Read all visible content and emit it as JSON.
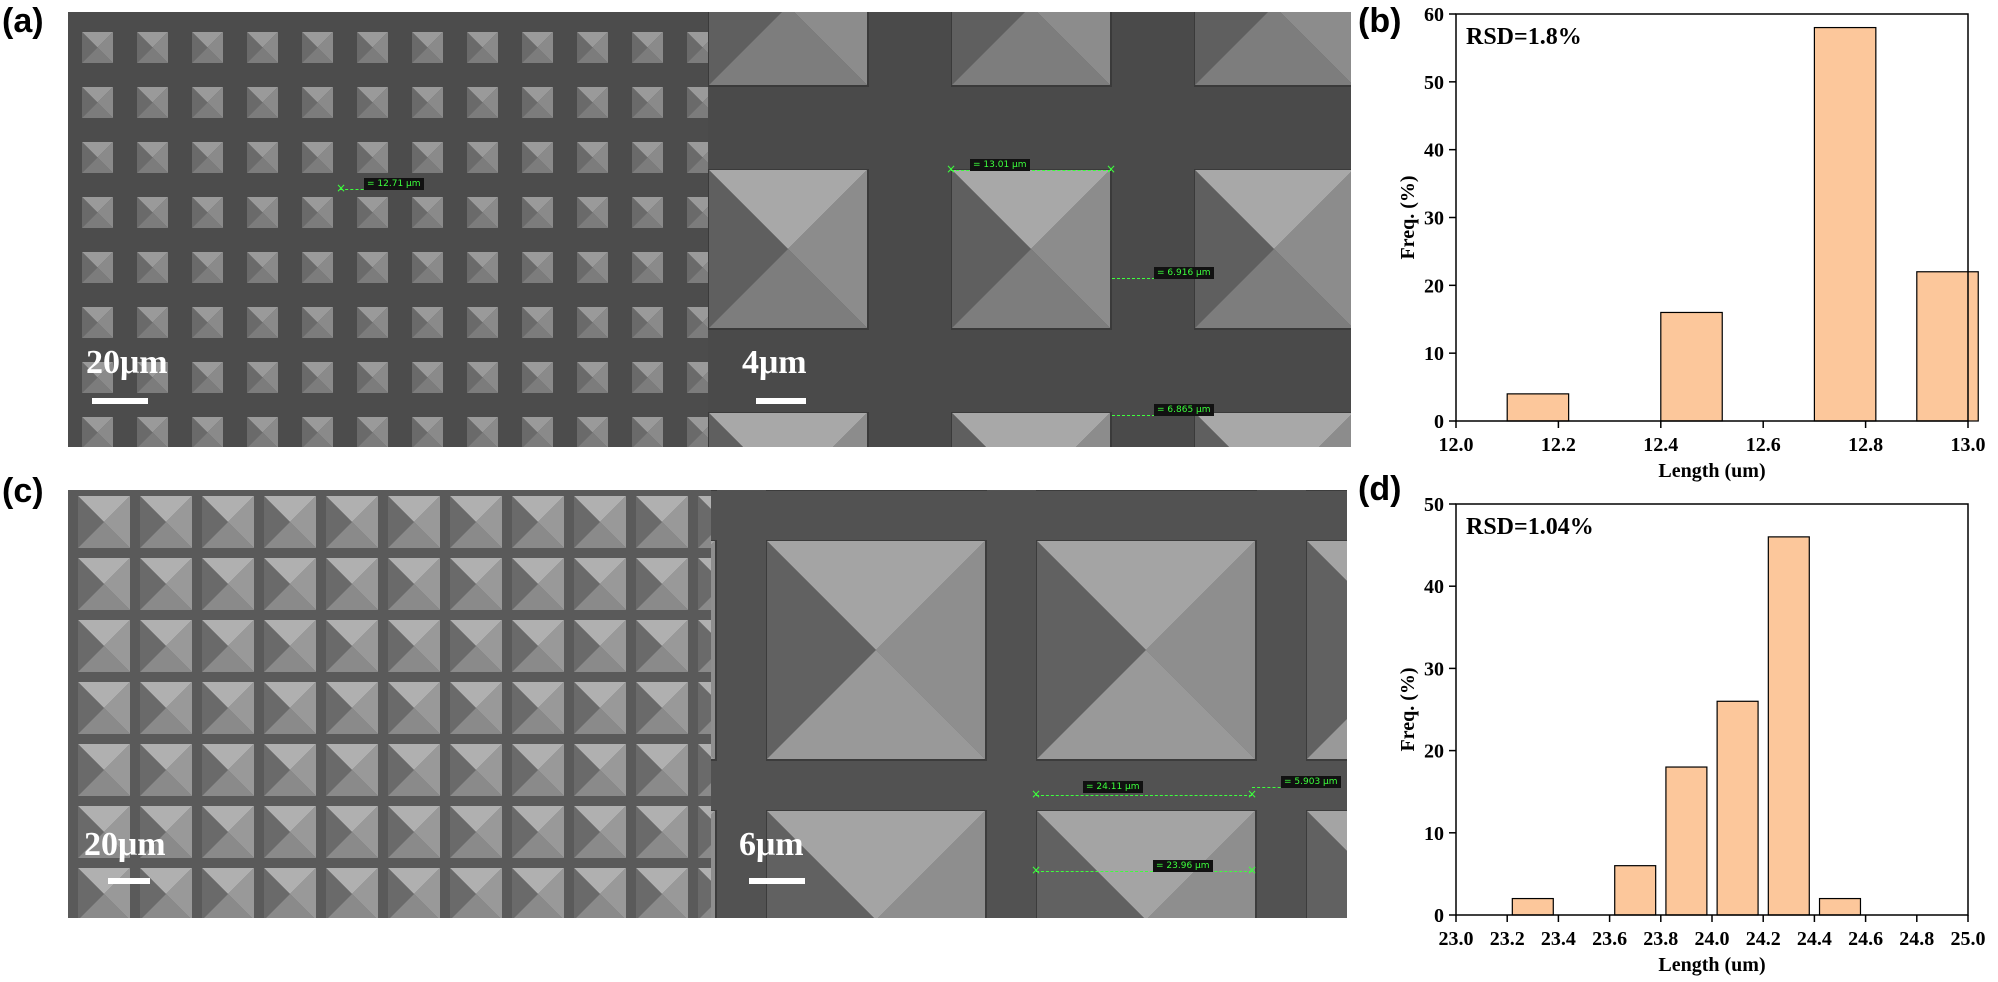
{
  "panels": {
    "a": "(a)",
    "b": "(b)",
    "c": "(c)",
    "d": "(d)"
  },
  "sem_a": {
    "left_scale": "20μm",
    "right_scale": "4μm",
    "measurements": [
      "= 12.71 μm",
      "= 13.01 μm",
      "= 6.916 μm",
      "= 6.865 μm"
    ]
  },
  "sem_c": {
    "left_scale": "20μm",
    "right_scale": "6μm",
    "measurements": [
      "= 24.11 μm",
      "= 5.903 μm",
      "= 23.96 μm"
    ]
  },
  "colors": {
    "bar_fill": "#fcc79b",
    "bar_stroke": "#000000",
    "measure_green": "#3dff3d"
  },
  "chart_data": [
    {
      "panel": "b",
      "type": "bar",
      "annotation": "RSD=1.8%",
      "xlabel": "Length (um)",
      "ylabel": "Freq. (%)",
      "xlim": [
        12.0,
        13.0
      ],
      "ylim": [
        0,
        60
      ],
      "xticks": [
        12.0,
        12.2,
        12.4,
        12.6,
        12.8,
        13.0
      ],
      "xtick_labels": [
        "12.0",
        "12.2",
        "12.4",
        "12.6",
        "12.8",
        "13.0"
      ],
      "yticks": [
        0,
        10,
        20,
        30,
        40,
        50,
        60
      ],
      "ytick_labels": [
        "0",
        "10",
        "20",
        "30",
        "40",
        "50",
        "60"
      ],
      "bar_width": 0.12,
      "x": [
        12.16,
        12.46,
        12.76,
        12.96
      ],
      "values": [
        4,
        16,
        58,
        22
      ]
    },
    {
      "panel": "d",
      "type": "bar",
      "annotation": "RSD=1.04%",
      "xlabel": "Length (um)",
      "ylabel": "Freq. (%)",
      "xlim": [
        23.0,
        25.0
      ],
      "ylim": [
        0,
        50
      ],
      "xticks": [
        23.0,
        23.2,
        23.4,
        23.6,
        23.8,
        24.0,
        24.2,
        24.4,
        24.6,
        24.8,
        25.0
      ],
      "xtick_labels": [
        "23.0",
        "23.2",
        "23.4",
        "23.6",
        "23.8",
        "24.0",
        "24.2",
        "24.4",
        "24.6",
        "24.8",
        "25.0"
      ],
      "yticks": [
        0,
        10,
        20,
        30,
        40,
        50
      ],
      "ytick_labels": [
        "0",
        "10",
        "20",
        "30",
        "40",
        "50"
      ],
      "bar_width": 0.16,
      "x": [
        23.3,
        23.7,
        23.9,
        24.1,
        24.3,
        24.5
      ],
      "values": [
        2,
        6,
        18,
        26,
        46,
        2
      ]
    }
  ]
}
